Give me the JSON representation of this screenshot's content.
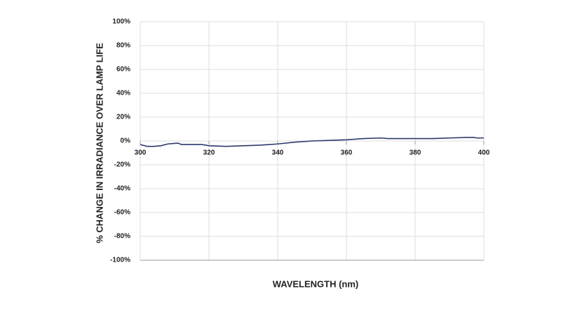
{
  "chart_data": {
    "type": "line",
    "x_label": "WAVELENGTH (nm)",
    "y_label": "% CHANGE IN IRRADIANCE OVER LAMP LIFE",
    "x": [
      300,
      302,
      304,
      306,
      308,
      310,
      311,
      312,
      316,
      318,
      320,
      325,
      330,
      335,
      340,
      345,
      350,
      355,
      360,
      365,
      370,
      372,
      380,
      385,
      390,
      395,
      397,
      398,
      400
    ],
    "values": [
      -3,
      -4.5,
      -4.5,
      -4,
      -2.5,
      -2,
      -1.8,
      -3,
      -3,
      -3,
      -4,
      -4.5,
      -4,
      -3.5,
      -2.5,
      -1,
      0,
      0.5,
      1,
      2,
      2.5,
      2,
      2,
      2,
      2.5,
      3,
      3,
      2.5,
      2.5
    ],
    "color": "#2b3a6b",
    "xlim": [
      300,
      400
    ],
    "xticks": [
      300,
      320,
      340,
      360,
      380,
      400
    ],
    "ylim": [
      -100,
      100
    ],
    "yticks": [
      {
        "value": -100,
        "label": "-100%"
      },
      {
        "value": -80,
        "label": "-80%"
      },
      {
        "value": -60,
        "label": "-60%"
      },
      {
        "value": -40,
        "label": "-40%"
      },
      {
        "value": -20,
        "label": "-20%"
      },
      {
        "value": 0,
        "label": "0%"
      },
      {
        "value": 20,
        "label": "20%"
      },
      {
        "value": 40,
        "label": "40%"
      },
      {
        "value": 60,
        "label": "60%"
      },
      {
        "value": 80,
        "label": "80%"
      },
      {
        "value": 100,
        "label": "100%"
      }
    ],
    "grid": true
  }
}
